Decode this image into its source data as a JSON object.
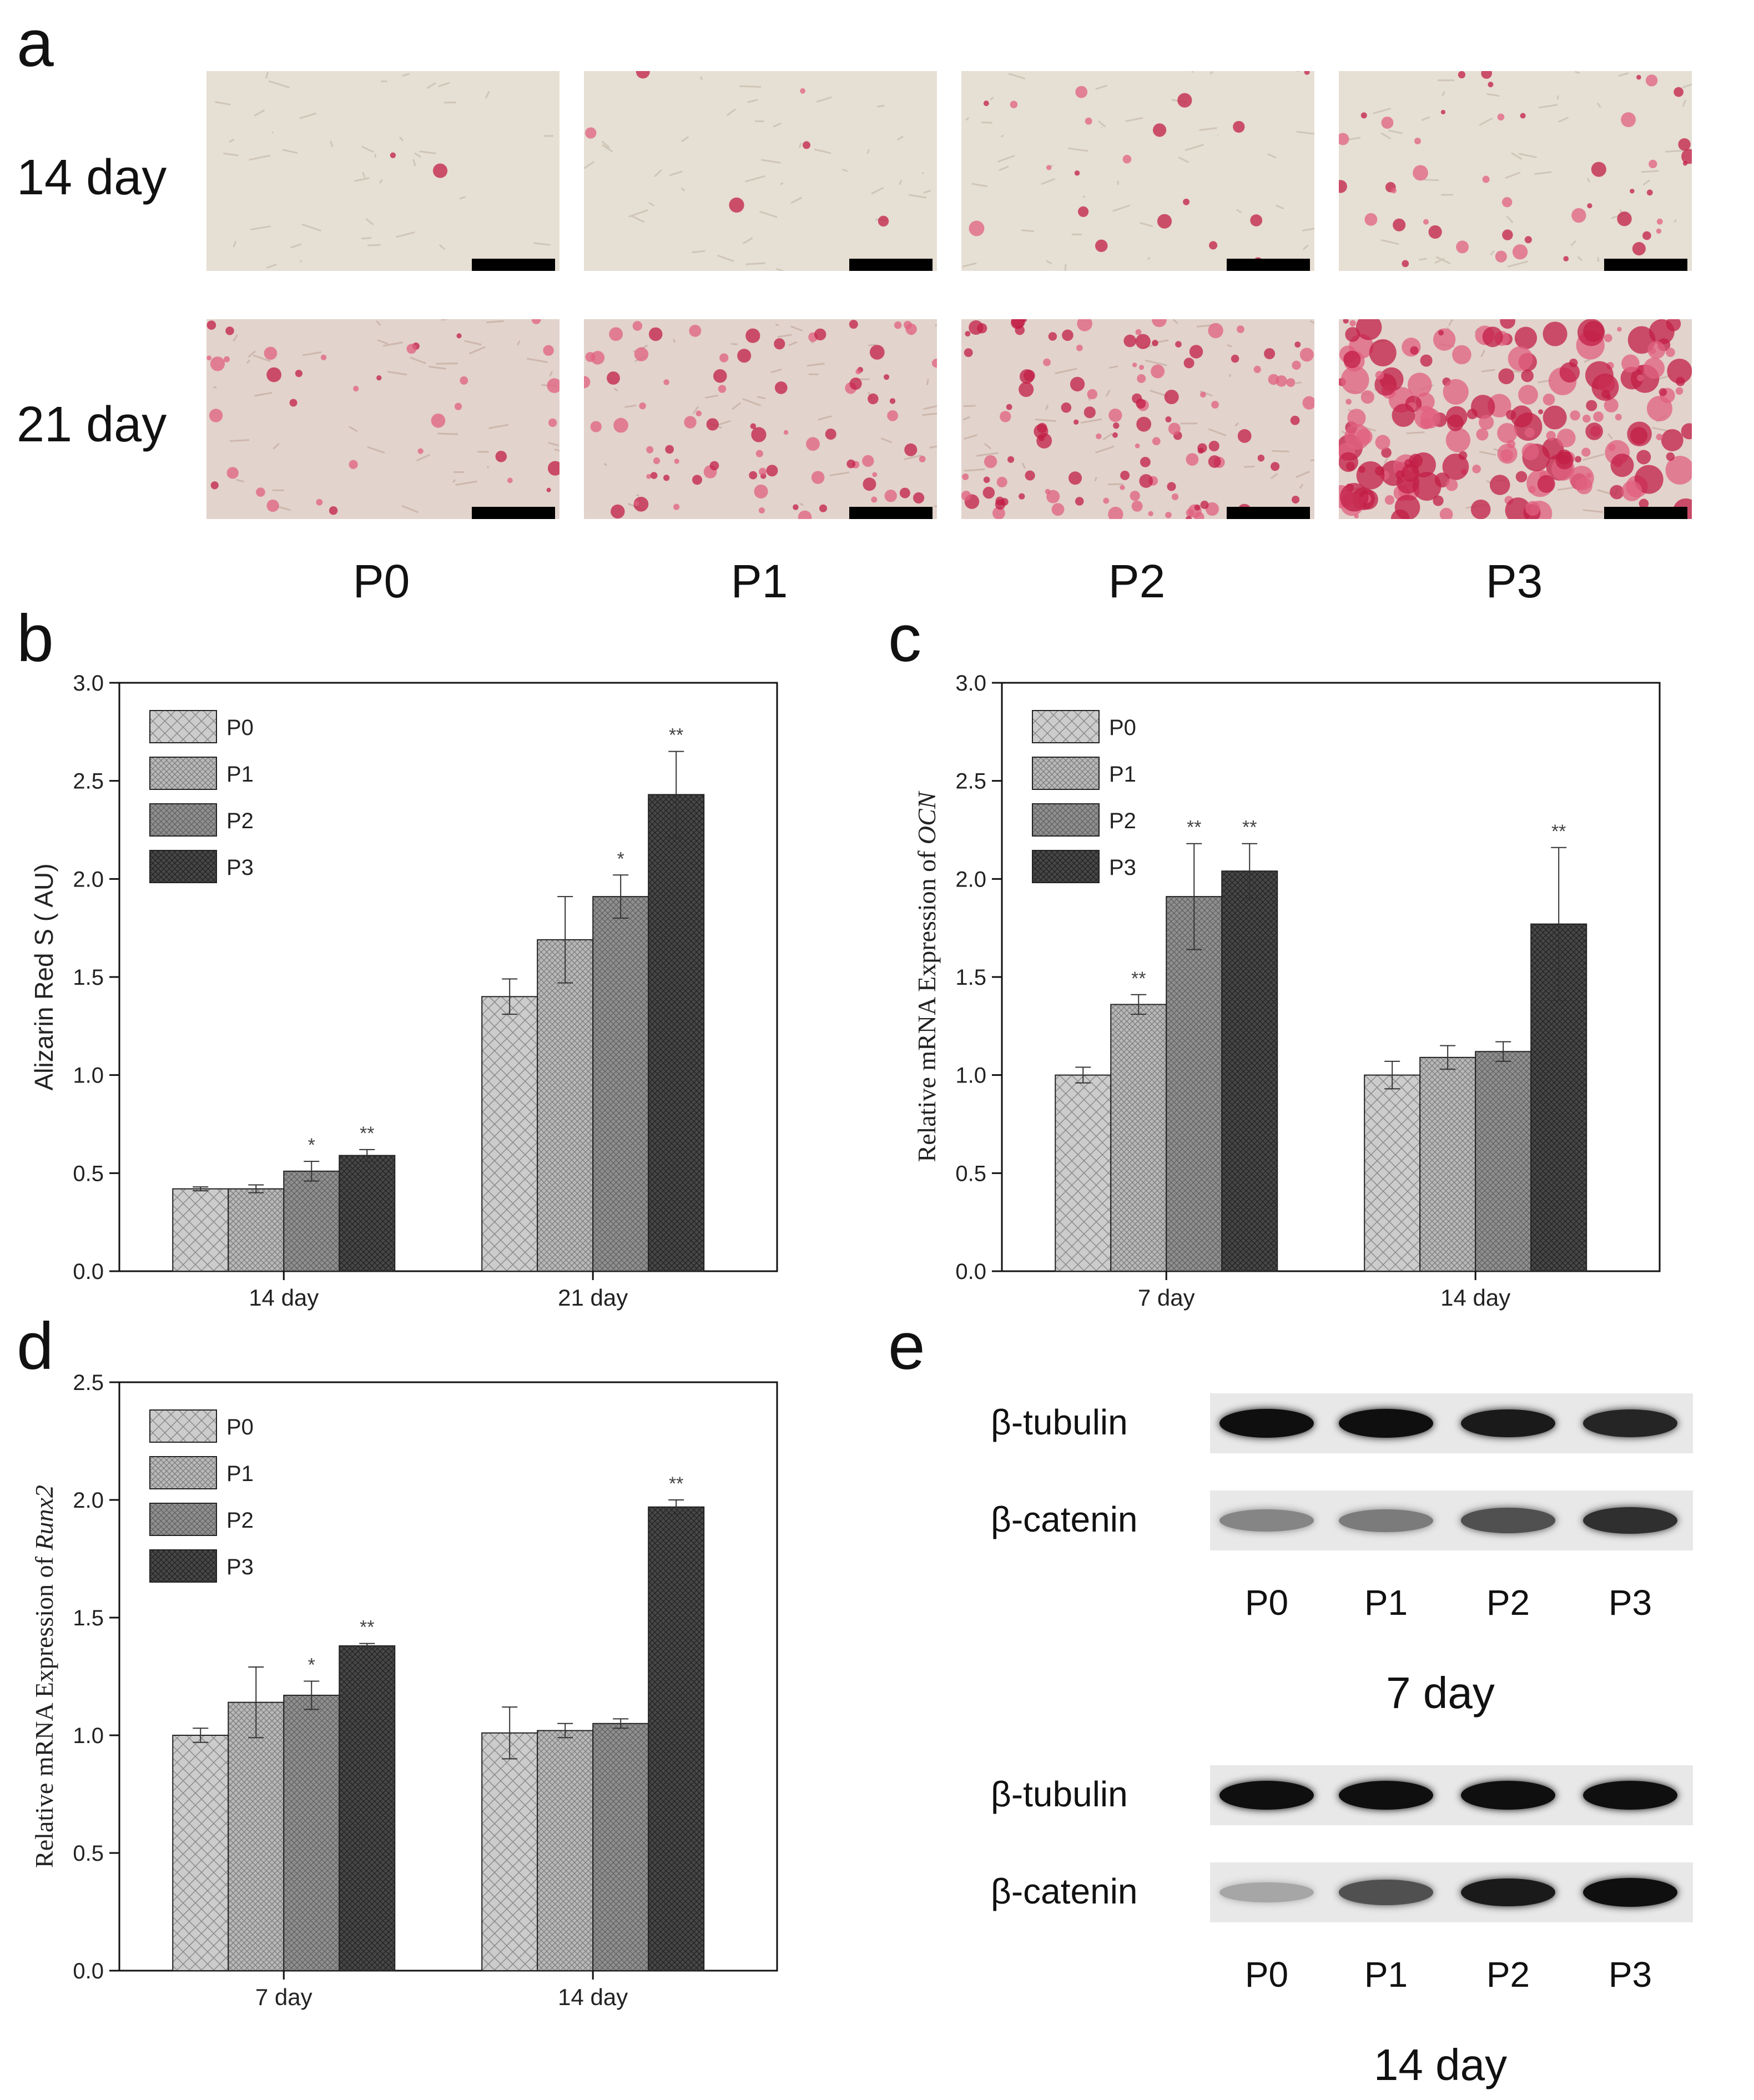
{
  "panel_a": {
    "letter": "a",
    "rows": [
      "14 day",
      "21 day"
    ],
    "columns": [
      "P0",
      "P1",
      "P2",
      "P3"
    ]
  },
  "panel_e": {
    "letter": "e",
    "blots": [
      {
        "rows": [
          "β-tubulin",
          "β-catenin"
        ],
        "lanes": [
          "P0",
          "P1",
          "P2",
          "P3"
        ],
        "day": "7 day",
        "band_intensity": {
          "β-tubulin": [
            1.0,
            1.0,
            0.95,
            0.9
          ],
          "β-catenin": [
            0.45,
            0.5,
            0.7,
            0.85
          ]
        }
      },
      {
        "rows": [
          "β-tubulin",
          "β-catenin"
        ],
        "lanes": [
          "P0",
          "P1",
          "P2",
          "P3"
        ],
        "day": "14 day",
        "band_intensity": {
          "β-tubulin": [
            1.0,
            1.0,
            1.0,
            1.0
          ],
          "β-catenin": [
            0.3,
            0.7,
            0.95,
            1.0
          ]
        }
      }
    ]
  },
  "legend": [
    "P0",
    "P1",
    "P2",
    "P3"
  ],
  "colors": {
    "P0": "#c9c9c9",
    "P1": "#b3b3b3",
    "P2": "#8e8e8e",
    "P3": "#4a4a4a"
  },
  "chart_data": [
    {
      "panel": "b",
      "type": "bar",
      "ylabel": "Alizarin Red S ( AU)",
      "ylim": [
        0,
        3.0
      ],
      "yticks": [
        "0.0",
        "0.5",
        "1.0",
        "1.5",
        "2.0",
        "2.5",
        "3.0"
      ],
      "categories": [
        "14 day",
        "21 day"
      ],
      "series": [
        {
          "name": "P0",
          "values": [
            0.42,
            1.4
          ],
          "errors": [
            0.01,
            0.09
          ],
          "sig": [
            "",
            ""
          ]
        },
        {
          "name": "P1",
          "values": [
            0.42,
            1.69
          ],
          "errors": [
            0.02,
            0.22
          ],
          "sig": [
            "",
            ""
          ]
        },
        {
          "name": "P2",
          "values": [
            0.51,
            1.91
          ],
          "errors": [
            0.05,
            0.11
          ],
          "sig": [
            "*",
            "*"
          ]
        },
        {
          "name": "P3",
          "values": [
            0.59,
            2.43
          ],
          "errors": [
            0.03,
            0.22
          ],
          "sig": [
            "**",
            "**"
          ]
        }
      ]
    },
    {
      "panel": "c",
      "type": "bar",
      "ylabel_prefix": "Relative mRNA Expression of ",
      "ylabel_gene": "OCN",
      "ylim": [
        0,
        3.0
      ],
      "yticks": [
        "0.0",
        "0.5",
        "1.0",
        "1.5",
        "2.0",
        "2.5",
        "3.0"
      ],
      "categories": [
        "7 day",
        "14 day"
      ],
      "series": [
        {
          "name": "P0",
          "values": [
            1.0,
            1.0
          ],
          "errors": [
            0.04,
            0.07
          ],
          "sig": [
            "",
            ""
          ]
        },
        {
          "name": "P1",
          "values": [
            1.36,
            1.09
          ],
          "errors": [
            0.05,
            0.06
          ],
          "sig": [
            "**",
            ""
          ]
        },
        {
          "name": "P2",
          "values": [
            1.91,
            1.12
          ],
          "errors": [
            0.27,
            0.05
          ],
          "sig": [
            "**",
            ""
          ]
        },
        {
          "name": "P3",
          "values": [
            2.04,
            1.77
          ],
          "errors": [
            0.14,
            0.39
          ],
          "sig": [
            "**",
            "**"
          ]
        }
      ]
    },
    {
      "panel": "d",
      "type": "bar",
      "ylabel_prefix": "Relative mRNA Expression of ",
      "ylabel_gene": "Runx2",
      "ylim": [
        0,
        2.5
      ],
      "yticks": [
        "0.0",
        "0.5",
        "1.0",
        "1.5",
        "2.0",
        "2.5"
      ],
      "categories": [
        "7 day",
        "14 day"
      ],
      "series": [
        {
          "name": "P0",
          "values": [
            1.0,
            1.01
          ],
          "errors": [
            0.03,
            0.11
          ],
          "sig": [
            "",
            ""
          ]
        },
        {
          "name": "P1",
          "values": [
            1.14,
            1.02
          ],
          "errors": [
            0.15,
            0.03
          ],
          "sig": [
            "",
            ""
          ]
        },
        {
          "name": "P2",
          "values": [
            1.17,
            1.05
          ],
          "errors": [
            0.06,
            0.02
          ],
          "sig": [
            "*",
            ""
          ]
        },
        {
          "name": "P3",
          "values": [
            1.38,
            1.97
          ],
          "errors": [
            0.01,
            0.03
          ],
          "sig": [
            "**",
            "**"
          ]
        }
      ]
    }
  ]
}
